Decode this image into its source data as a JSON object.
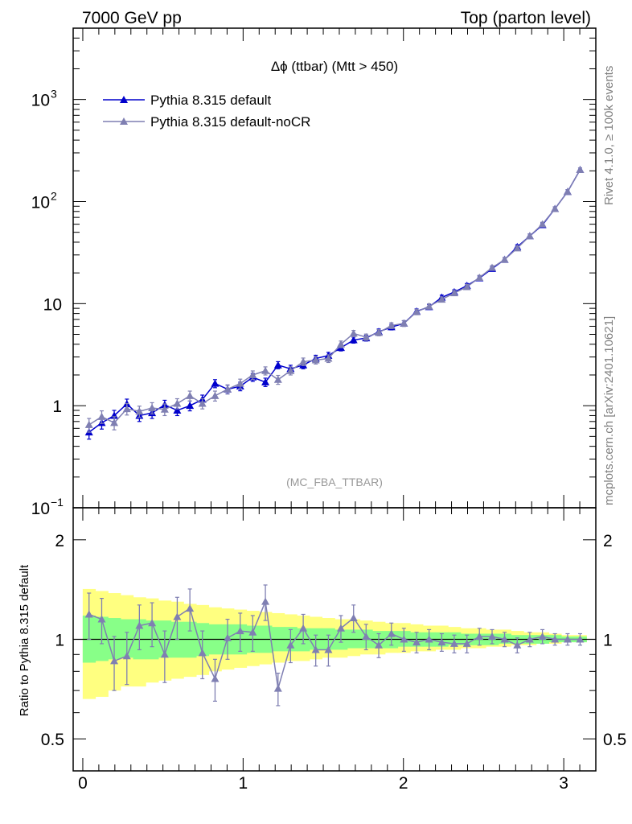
{
  "chart_data": [
    {
      "type": "line",
      "title": "Δϕ (ttbar) (Mtt > 450)",
      "header_left": "7000 GeV pp",
      "header_right": "Top (parton level)",
      "side_label_top": "Rivet 4.1.0, ≥ 100k events",
      "side_label_bottom": "mcplots.cern.ch [arXiv:2401.10621]",
      "analysis_tag": "(MC_FBA_TTBAR)",
      "xlabel": "",
      "ylabel": "",
      "yscale": "log",
      "xlim": [
        -0.06,
        3.2
      ],
      "ylim": [
        0.1,
        5000
      ],
      "y_tick_labels": [
        {
          "value": 1000,
          "label_base": "10",
          "label_exp": "3"
        },
        {
          "value": 100,
          "label_base": "10",
          "label_exp": "2"
        },
        {
          "value": 10,
          "label_base": "10",
          "label_exp": ""
        },
        {
          "value": 1,
          "label_base": "1",
          "label_exp": ""
        },
        {
          "value": 0.1,
          "label_base": "10",
          "label_exp": "−1"
        }
      ],
      "x": [
        0.039,
        0.118,
        0.196,
        0.275,
        0.353,
        0.432,
        0.511,
        0.589,
        0.668,
        0.746,
        0.825,
        0.903,
        0.982,
        1.06,
        1.139,
        1.218,
        1.296,
        1.375,
        1.453,
        1.532,
        1.61,
        1.689,
        1.767,
        1.846,
        1.925,
        2.003,
        2.082,
        2.16,
        2.239,
        2.317,
        2.396,
        2.474,
        2.553,
        2.631,
        2.71,
        2.788,
        2.867,
        2.945,
        3.024,
        3.102
      ],
      "series": [
        {
          "name": "Pythia 8.315 default",
          "color": "#0000cc",
          "values": [
            0.55,
            0.68,
            0.8,
            1.04,
            0.8,
            0.85,
            1.02,
            0.9,
            1.0,
            1.15,
            1.65,
            1.45,
            1.55,
            1.9,
            1.7,
            2.5,
            2.3,
            2.5,
            2.9,
            3.1,
            3.7,
            4.4,
            4.6,
            5.3,
            5.9,
            6.4,
            8.4,
            9.3,
            11.5,
            13.0,
            15.0,
            17.8,
            22.0,
            27.0,
            36.0,
            46.0,
            59.0,
            85.0,
            125.0,
            205.0
          ],
          "errors": [
            0.08,
            0.09,
            0.1,
            0.12,
            0.1,
            0.1,
            0.11,
            0.1,
            0.11,
            0.12,
            0.15,
            0.14,
            0.15,
            0.17,
            0.16,
            0.2,
            0.19,
            0.2,
            0.22,
            0.23,
            0.26,
            0.3,
            0.3,
            0.34,
            0.37,
            0.4,
            0.48,
            0.53,
            0.6,
            0.66,
            0.75,
            0.88,
            1.05,
            1.3,
            1.7,
            2.1,
            2.7,
            3.8,
            5.6,
            9.0
          ]
        },
        {
          "name": "Pythia 8.315 default-noCR",
          "color": "#7f7fb2",
          "values": [
            0.65,
            0.78,
            0.68,
            0.93,
            0.88,
            0.95,
            0.92,
            1.05,
            1.25,
            1.05,
            1.25,
            1.45,
            1.65,
            2.0,
            2.2,
            1.8,
            2.2,
            2.7,
            2.8,
            2.9,
            4.0,
            5.1,
            4.7,
            5.2,
            6.1,
            6.4,
            8.3,
            9.4,
            11.0,
            12.7,
            14.6,
            18.0,
            22.5,
            27.0,
            35.0,
            46.0,
            60.0,
            85.0,
            125.0,
            205.0
          ],
          "errors": [
            0.1,
            0.11,
            0.1,
            0.12,
            0.11,
            0.12,
            0.12,
            0.12,
            0.14,
            0.12,
            0.14,
            0.15,
            0.17,
            0.19,
            0.2,
            0.18,
            0.2,
            0.23,
            0.24,
            0.25,
            0.3,
            0.36,
            0.33,
            0.36,
            0.4,
            0.42,
            0.5,
            0.55,
            0.62,
            0.7,
            0.78,
            0.92,
            1.1,
            1.3,
            1.7,
            2.1,
            2.7,
            3.8,
            5.6,
            9.0
          ]
        }
      ]
    },
    {
      "type": "line",
      "title": "",
      "xlabel": "",
      "ylabel": "Ratio to Pythia 8.315 default",
      "yscale": "log",
      "xlim": [
        -0.06,
        3.2
      ],
      "ylim": [
        0.4,
        2.5
      ],
      "x_ticks": [
        0,
        1,
        2,
        3
      ],
      "x_tick_labels": [
        "0",
        "1",
        "2",
        "3"
      ],
      "y_ticks": [
        0.5,
        1,
        2
      ],
      "y_tick_labels": [
        "0.5",
        "1",
        "2"
      ],
      "x": [
        0.039,
        0.118,
        0.196,
        0.275,
        0.353,
        0.432,
        0.511,
        0.589,
        0.668,
        0.746,
        0.825,
        0.903,
        0.982,
        1.06,
        1.139,
        1.218,
        1.296,
        1.375,
        1.453,
        1.532,
        1.61,
        1.689,
        1.767,
        1.846,
        1.925,
        2.003,
        2.082,
        2.16,
        2.239,
        2.317,
        2.396,
        2.474,
        2.553,
        2.631,
        2.71,
        2.788,
        2.867,
        2.945,
        3.024,
        3.102
      ],
      "band_inner": [
        [
          0.85,
          1.18
        ],
        [
          0.86,
          1.17
        ],
        [
          0.87,
          1.16
        ],
        [
          0.88,
          1.15
        ],
        [
          0.87,
          1.15
        ],
        [
          0.87,
          1.14
        ],
        [
          0.88,
          1.14
        ],
        [
          0.88,
          1.13
        ],
        [
          0.88,
          1.13
        ],
        [
          0.89,
          1.12
        ],
        [
          0.9,
          1.11
        ],
        [
          0.9,
          1.11
        ],
        [
          0.9,
          1.11
        ],
        [
          0.91,
          1.1
        ],
        [
          0.91,
          1.1
        ],
        [
          0.92,
          1.09
        ],
        [
          0.92,
          1.09
        ],
        [
          0.92,
          1.08
        ],
        [
          0.93,
          1.08
        ],
        [
          0.93,
          1.08
        ],
        [
          0.93,
          1.07
        ],
        [
          0.94,
          1.07
        ],
        [
          0.94,
          1.07
        ],
        [
          0.94,
          1.06
        ],
        [
          0.94,
          1.06
        ],
        [
          0.95,
          1.06
        ],
        [
          0.95,
          1.05
        ],
        [
          0.95,
          1.05
        ],
        [
          0.95,
          1.05
        ],
        [
          0.96,
          1.05
        ],
        [
          0.96,
          1.04
        ],
        [
          0.96,
          1.04
        ],
        [
          0.96,
          1.04
        ],
        [
          0.97,
          1.04
        ],
        [
          0.97,
          1.03
        ],
        [
          0.97,
          1.03
        ],
        [
          0.97,
          1.03
        ],
        [
          0.98,
          1.03
        ],
        [
          0.98,
          1.02
        ],
        [
          0.98,
          1.02
        ]
      ],
      "band_outer": [
        [
          0.66,
          1.42
        ],
        [
          0.67,
          1.4
        ],
        [
          0.7,
          1.38
        ],
        [
          0.72,
          1.36
        ],
        [
          0.72,
          1.34
        ],
        [
          0.74,
          1.33
        ],
        [
          0.75,
          1.31
        ],
        [
          0.76,
          1.3
        ],
        [
          0.77,
          1.28
        ],
        [
          0.78,
          1.27
        ],
        [
          0.8,
          1.25
        ],
        [
          0.81,
          1.24
        ],
        [
          0.82,
          1.23
        ],
        [
          0.83,
          1.22
        ],
        [
          0.84,
          1.21
        ],
        [
          0.85,
          1.2
        ],
        [
          0.86,
          1.19
        ],
        [
          0.86,
          1.18
        ],
        [
          0.87,
          1.17
        ],
        [
          0.88,
          1.16
        ],
        [
          0.88,
          1.15
        ],
        [
          0.89,
          1.15
        ],
        [
          0.9,
          1.14
        ],
        [
          0.9,
          1.13
        ],
        [
          0.91,
          1.12
        ],
        [
          0.91,
          1.12
        ],
        [
          0.92,
          1.11
        ],
        [
          0.92,
          1.1
        ],
        [
          0.93,
          1.1
        ],
        [
          0.93,
          1.09
        ],
        [
          0.94,
          1.08
        ],
        [
          0.94,
          1.08
        ],
        [
          0.95,
          1.07
        ],
        [
          0.95,
          1.07
        ],
        [
          0.96,
          1.06
        ],
        [
          0.96,
          1.05
        ],
        [
          0.97,
          1.05
        ],
        [
          0.97,
          1.04
        ],
        [
          0.98,
          1.03
        ],
        [
          0.98,
          1.03
        ]
      ],
      "reference": 1.0,
      "series": [
        {
          "name": "Pythia 8.315 default-noCR",
          "color": "#7f7fb2",
          "values": [
            1.19,
            1.15,
            0.86,
            0.89,
            1.1,
            1.12,
            0.9,
            1.17,
            1.24,
            0.91,
            0.76,
            1.01,
            1.06,
            1.05,
            1.3,
            0.71,
            0.96,
            1.08,
            0.93,
            0.93,
            1.08,
            1.16,
            1.02,
            0.96,
            1.04,
            1.0,
            0.98,
            1.0,
            0.98,
            0.97,
            0.97,
            1.02,
            1.02,
            1.0,
            0.96,
            1.0,
            1.02,
            1.0,
            1.0,
            1.0
          ],
          "errors": [
            0.19,
            0.18,
            0.16,
            0.16,
            0.17,
            0.17,
            0.16,
            0.17,
            0.18,
            0.15,
            0.11,
            0.14,
            0.14,
            0.13,
            0.16,
            0.08,
            0.11,
            0.11,
            0.1,
            0.1,
            0.1,
            0.11,
            0.09,
            0.08,
            0.08,
            0.08,
            0.07,
            0.07,
            0.06,
            0.06,
            0.06,
            0.06,
            0.05,
            0.05,
            0.05,
            0.05,
            0.05,
            0.04,
            0.04,
            0.04
          ]
        }
      ]
    }
  ]
}
